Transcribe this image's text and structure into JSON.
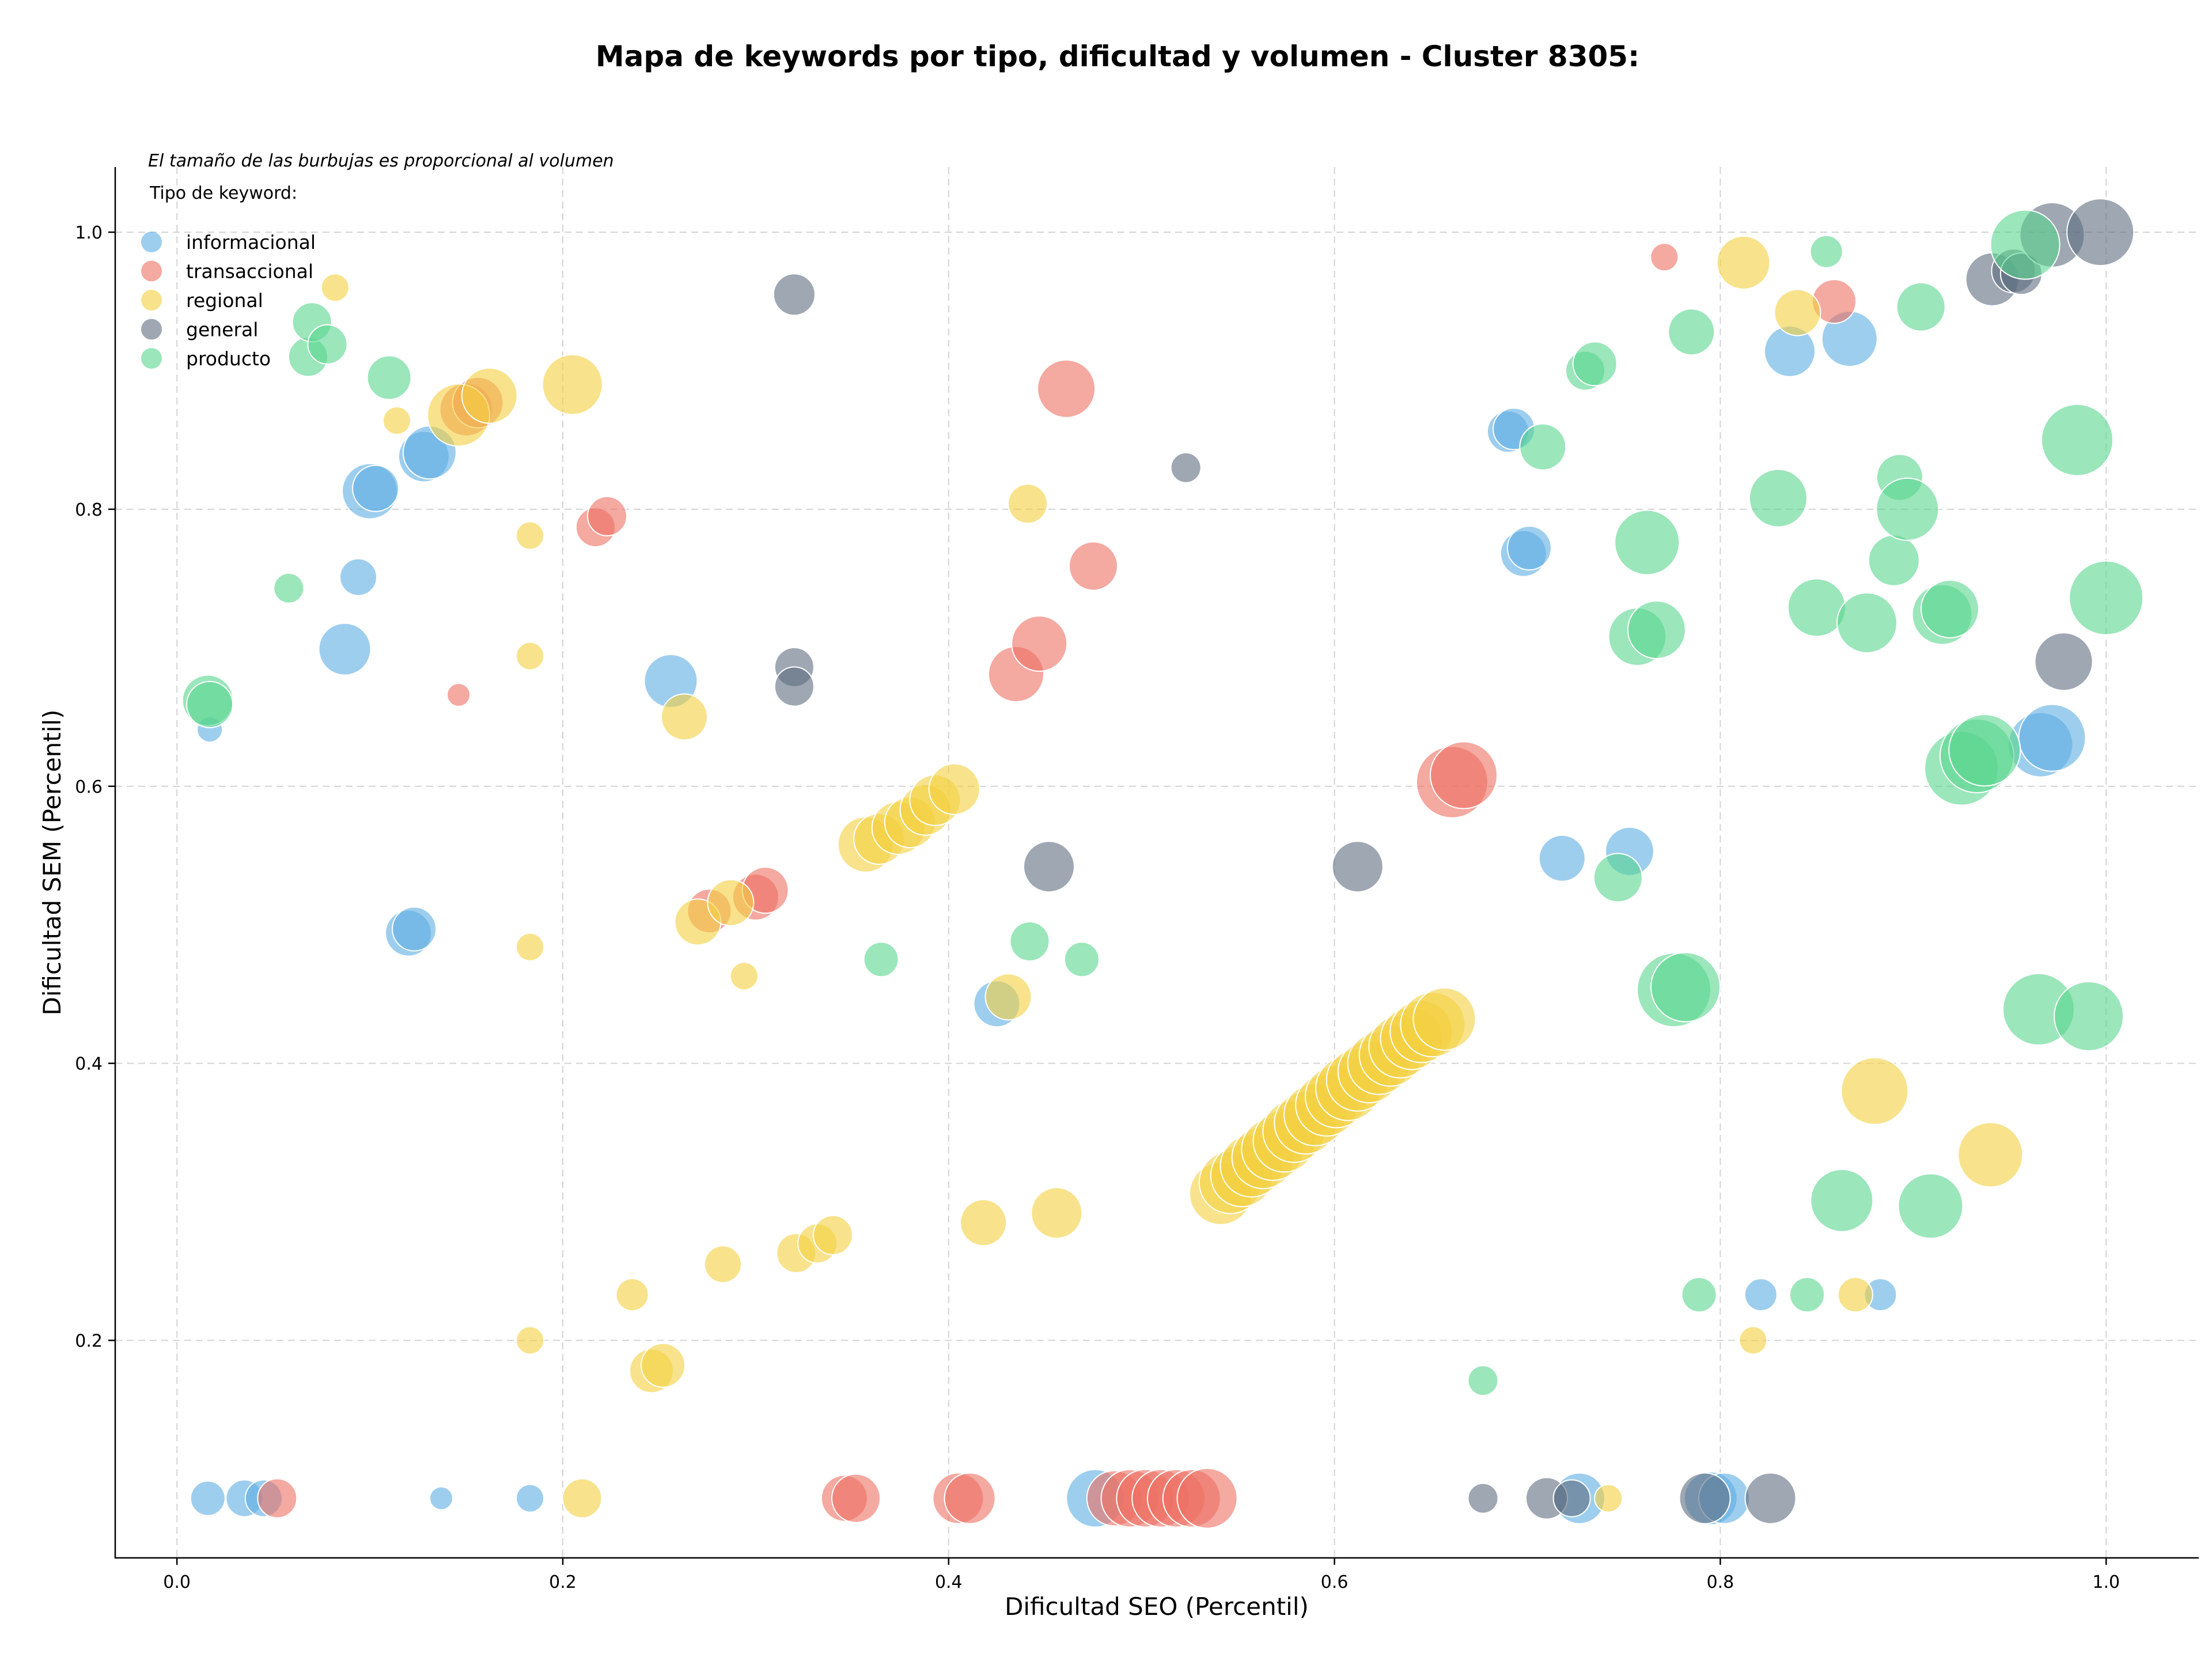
{
  "chart_data": {
    "type": "scatter",
    "title": "Mapa de keywords por tipo, dificultad y volumen - Cluster 8305:",
    "xlabel": "Dificultad SEO (Percentil)",
    "ylabel": "Dificultad SEM (Percentil)",
    "note": "El tamaño de las burbujas es proporcional al volumen",
    "legend_title": "Tipo de keyword:",
    "legend_position": "top-left",
    "grid": true,
    "xlim": [
      -0.032,
      1.048
    ],
    "ylim": [
      0.043,
      1.047
    ],
    "xticks": [
      "0.0",
      "0.2",
      "0.4",
      "0.6",
      "0.8",
      "1.0"
    ],
    "yticks": [
      "0.2",
      "0.4",
      "0.6",
      "0.8",
      "1.0"
    ],
    "series": [
      {
        "name": "informacional",
        "color": "#5DADE2",
        "points": [
          [
            0.016,
            0.086,
            30
          ],
          [
            0.035,
            0.086,
            32
          ],
          [
            0.045,
            0.086,
            32
          ],
          [
            0.017,
            0.641,
            22
          ],
          [
            0.137,
            0.086,
            20
          ],
          [
            0.183,
            0.086,
            24
          ],
          [
            0.087,
            0.699,
            45
          ],
          [
            0.094,
            0.751,
            32
          ],
          [
            0.1,
            0.813,
            48
          ],
          [
            0.103,
            0.815,
            40
          ],
          [
            0.12,
            0.494,
            40
          ],
          [
            0.123,
            0.497,
            38
          ],
          [
            0.128,
            0.838,
            44
          ],
          [
            0.131,
            0.841,
            46
          ],
          [
            0.256,
            0.676,
            46
          ],
          [
            0.425,
            0.443,
            40
          ],
          [
            0.476,
            0.086,
            50
          ],
          [
            0.69,
            0.856,
            36
          ],
          [
            0.693,
            0.858,
            36
          ],
          [
            0.698,
            0.768,
            40
          ],
          [
            0.701,
            0.772,
            38
          ],
          [
            0.718,
            0.548,
            40
          ],
          [
            0.753,
            0.553,
            42
          ],
          [
            0.727,
            0.086,
            44
          ],
          [
            0.795,
            0.086,
            46
          ],
          [
            0.802,
            0.086,
            44
          ],
          [
            0.821,
            0.233,
            28
          ],
          [
            0.836,
            0.914,
            44
          ],
          [
            0.867,
            0.923,
            48
          ],
          [
            0.883,
            0.233,
            28
          ],
          [
            0.966,
            0.63,
            56
          ],
          [
            0.972,
            0.635,
            58
          ]
        ]
      },
      {
        "name": "transaccional",
        "color": "#EC7063",
        "points": [
          [
            0.052,
            0.086,
            34
          ],
          [
            0.146,
            0.666,
            20
          ],
          [
            0.217,
            0.787,
            34
          ],
          [
            0.223,
            0.795,
            34
          ],
          [
            0.276,
            0.51,
            38
          ],
          [
            0.3,
            0.52,
            40
          ],
          [
            0.305,
            0.525,
            40
          ],
          [
            0.346,
            0.086,
            40
          ],
          [
            0.352,
            0.086,
            42
          ],
          [
            0.405,
            0.086,
            44
          ],
          [
            0.411,
            0.086,
            44
          ],
          [
            0.435,
            0.681,
            48
          ],
          [
            0.447,
            0.703,
            48
          ],
          [
            0.461,
            0.887,
            50
          ],
          [
            0.475,
            0.759,
            42
          ],
          [
            0.486,
            0.086,
            48
          ],
          [
            0.494,
            0.086,
            50
          ],
          [
            0.502,
            0.086,
            50
          ],
          [
            0.51,
            0.086,
            50
          ],
          [
            0.518,
            0.086,
            50
          ],
          [
            0.526,
            0.086,
            50
          ],
          [
            0.534,
            0.086,
            52
          ],
          [
            0.661,
            0.603,
            62
          ],
          [
            0.667,
            0.608,
            58
          ],
          [
            0.771,
            0.982,
            24
          ],
          [
            0.859,
            0.95,
            38
          ],
          [
            0.15,
            0.872,
            46
          ],
          [
            0.156,
            0.877,
            44
          ]
        ]
      },
      {
        "name": "regional",
        "color": "#F4D03F",
        "points": [
          [
            0.082,
            0.96,
            24
          ],
          [
            0.114,
            0.864,
            24
          ],
          [
            0.146,
            0.868,
            54
          ],
          [
            0.162,
            0.882,
            48
          ],
          [
            0.205,
            0.89,
            52
          ],
          [
            0.183,
            0.781,
            24
          ],
          [
            0.183,
            0.694,
            24
          ],
          [
            0.183,
            0.484,
            24
          ],
          [
            0.183,
            0.2,
            24
          ],
          [
            0.21,
            0.086,
            34
          ],
          [
            0.236,
            0.233,
            28
          ],
          [
            0.246,
            0.178,
            38
          ],
          [
            0.252,
            0.182,
            38
          ],
          [
            0.263,
            0.65,
            40
          ],
          [
            0.27,
            0.502,
            40
          ],
          [
            0.283,
            0.255,
            32
          ],
          [
            0.287,
            0.516,
            40
          ],
          [
            0.294,
            0.463,
            24
          ],
          [
            0.321,
            0.263,
            34
          ],
          [
            0.332,
            0.27,
            34
          ],
          [
            0.34,
            0.276,
            34
          ],
          [
            0.357,
            0.558,
            48
          ],
          [
            0.364,
            0.562,
            44
          ],
          [
            0.374,
            0.57,
            46
          ],
          [
            0.38,
            0.574,
            44
          ],
          [
            0.388,
            0.583,
            44
          ],
          [
            0.393,
            0.59,
            44
          ],
          [
            0.403,
            0.598,
            44
          ],
          [
            0.418,
            0.285,
            40
          ],
          [
            0.431,
            0.448,
            40
          ],
          [
            0.441,
            0.804,
            34
          ],
          [
            0.456,
            0.292,
            44
          ],
          [
            0.541,
            0.306,
            54
          ],
          [
            0.546,
            0.314,
            54
          ],
          [
            0.552,
            0.319,
            54
          ],
          [
            0.557,
            0.326,
            54
          ],
          [
            0.563,
            0.332,
            54
          ],
          [
            0.568,
            0.338,
            54
          ],
          [
            0.574,
            0.344,
            54
          ],
          [
            0.579,
            0.351,
            54
          ],
          [
            0.585,
            0.357,
            54
          ],
          [
            0.59,
            0.363,
            54
          ],
          [
            0.596,
            0.37,
            54
          ],
          [
            0.601,
            0.376,
            54
          ],
          [
            0.607,
            0.382,
            56
          ],
          [
            0.612,
            0.388,
            54
          ],
          [
            0.618,
            0.394,
            54
          ],
          [
            0.623,
            0.4,
            54
          ],
          [
            0.629,
            0.406,
            54
          ],
          [
            0.634,
            0.412,
            54
          ],
          [
            0.64,
            0.418,
            54
          ],
          [
            0.645,
            0.423,
            54
          ],
          [
            0.651,
            0.428,
            56
          ],
          [
            0.657,
            0.432,
            54
          ],
          [
            0.742,
            0.086,
            24
          ],
          [
            0.812,
            0.978,
            46
          ],
          [
            0.817,
            0.2,
            24
          ],
          [
            0.84,
            0.942,
            40
          ],
          [
            0.87,
            0.233,
            30
          ],
          [
            0.88,
            0.38,
            58
          ],
          [
            0.94,
            0.334,
            56
          ]
        ]
      },
      {
        "name": "general",
        "color": "#5D6D7E",
        "points": [
          [
            0.32,
            0.955,
            36
          ],
          [
            0.32,
            0.686,
            34
          ],
          [
            0.32,
            0.672,
            34
          ],
          [
            0.452,
            0.542,
            44
          ],
          [
            0.523,
            0.83,
            26
          ],
          [
            0.612,
            0.542,
            44
          ],
          [
            0.677,
            0.086,
            26
          ],
          [
            0.71,
            0.086,
            36
          ],
          [
            0.723,
            0.086,
            32
          ],
          [
            0.792,
            0.086,
            44
          ],
          [
            0.826,
            0.086,
            44
          ],
          [
            0.941,
            0.966,
            46
          ],
          [
            0.952,
            0.972,
            38
          ],
          [
            0.956,
            0.97,
            36
          ],
          [
            0.978,
            0.69,
            50
          ],
          [
            0.972,
            0.998,
            56
          ],
          [
            0.997,
            1.0,
            58
          ]
        ]
      },
      {
        "name": "producto",
        "color": "#58D68D",
        "points": [
          [
            0.058,
            0.743,
            26
          ],
          [
            0.068,
            0.91,
            34
          ],
          [
            0.07,
            0.935,
            34
          ],
          [
            0.078,
            0.919,
            34
          ],
          [
            0.11,
            0.895,
            38
          ],
          [
            0.016,
            0.662,
            44
          ],
          [
            0.017,
            0.659,
            40
          ],
          [
            0.365,
            0.475,
            30
          ],
          [
            0.442,
            0.488,
            34
          ],
          [
            0.469,
            0.475,
            30
          ],
          [
            0.677,
            0.171,
            26
          ],
          [
            0.708,
            0.845,
            40
          ],
          [
            0.73,
            0.9,
            34
          ],
          [
            0.735,
            0.905,
            38
          ],
          [
            0.747,
            0.534,
            42
          ],
          [
            0.757,
            0.708,
            50
          ],
          [
            0.762,
            0.776,
            56
          ],
          [
            0.767,
            0.713,
            50
          ],
          [
            0.776,
            0.453,
            64
          ],
          [
            0.782,
            0.455,
            60
          ],
          [
            0.785,
            0.928,
            40
          ],
          [
            0.789,
            0.233,
            30
          ],
          [
            0.83,
            0.808,
            50
          ],
          [
            0.845,
            0.233,
            30
          ],
          [
            0.85,
            0.729,
            50
          ],
          [
            0.855,
            0.986,
            28
          ],
          [
            0.863,
            0.301,
            54
          ],
          [
            0.876,
            0.718,
            52
          ],
          [
            0.89,
            0.763,
            44
          ],
          [
            0.893,
            0.823,
            40
          ],
          [
            0.897,
            0.8,
            54
          ],
          [
            0.904,
            0.946,
            42
          ],
          [
            0.909,
            0.297,
            56
          ],
          [
            0.915,
            0.724,
            52
          ],
          [
            0.919,
            0.728,
            50
          ],
          [
            0.925,
            0.613,
            64
          ],
          [
            0.933,
            0.622,
            64
          ],
          [
            0.937,
            0.626,
            62
          ],
          [
            0.958,
            0.991,
            60
          ],
          [
            0.965,
            0.439,
            62
          ],
          [
            0.985,
            0.85,
            62
          ],
          [
            0.991,
            0.434,
            60
          ],
          [
            1.0,
            0.736,
            64
          ]
        ]
      }
    ]
  }
}
